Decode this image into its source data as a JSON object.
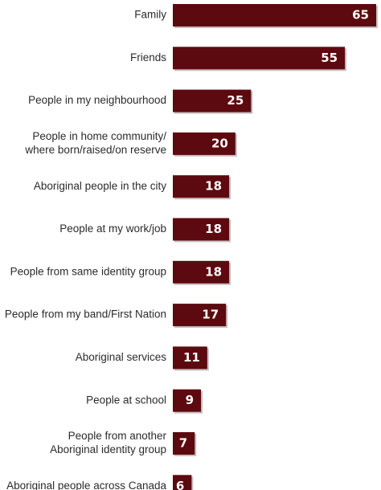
{
  "chart_data": {
    "type": "bar",
    "orientation": "horizontal",
    "title": "",
    "xlabel": "",
    "ylabel": "",
    "categories": [
      [
        "Family"
      ],
      [
        "Friends"
      ],
      [
        "People in my neighbourhood"
      ],
      [
        "People in home community/",
        "where born/raised/on reserve"
      ],
      [
        "Aboriginal people in the city"
      ],
      [
        "People at my work/job"
      ],
      [
        "People from same identity group"
      ],
      [
        "People from my band/First Nation"
      ],
      [
        "Aboriginal services"
      ],
      [
        "People at school"
      ],
      [
        "People from another",
        "Aboriginal identity group"
      ],
      [
        "Aboriginal people across Canada"
      ]
    ],
    "values": [
      65,
      55,
      25,
      20,
      18,
      18,
      18,
      17,
      11,
      9,
      7,
      6
    ],
    "data_labels": [
      "65",
      "55",
      "25",
      "20",
      "18",
      "18",
      "18",
      "17",
      "11",
      "9",
      "7",
      "6"
    ],
    "xlim": [
      0,
      65
    ],
    "grid": false,
    "legend": "none",
    "colors": {
      "bar": "#5c0a0f",
      "bar_shadow": "#c9bfc0",
      "label_text": "#2b2b2b",
      "value_text": "#ffffff"
    }
  }
}
